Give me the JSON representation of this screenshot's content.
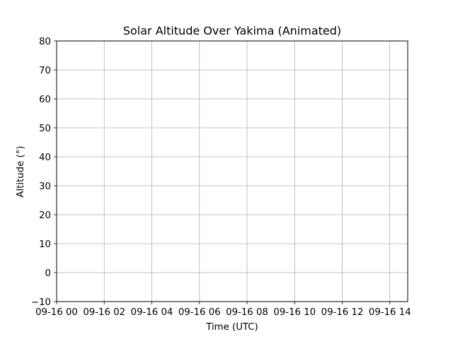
{
  "chart_data": {
    "type": "line",
    "title": "Solar Altitude Over Yakima (Animated)",
    "xlabel": "Time (UTC)",
    "ylabel": "Altitude (°)",
    "x_ticks": [
      "09-16 00",
      "09-16 02",
      "09-16 04",
      "09-16 06",
      "09-16 08",
      "09-16 10",
      "09-16 12",
      "09-16 14"
    ],
    "y_ticks": [
      "−10",
      "0",
      "10",
      "20",
      "30",
      "40",
      "50",
      "60",
      "70",
      "80"
    ],
    "ylim": [
      -10,
      80
    ],
    "grid": true,
    "series": []
  }
}
